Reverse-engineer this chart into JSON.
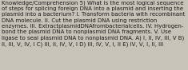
{
  "text": "Knowledge/Comprehension 5) What is the most logical sequence\nof steps for splicing foreign DNA into a plasmid and inserting the\nplasmid into a bacterium? I. Transform bacteria with recombinant\nDNA molecule. II. Cut the plasmid DNA using restriction\nenzymes. III. ExtractplasmidDNAfrombacterialcells. IV. Hydrogen-\nbond the plasmid DNA to nonplasmid DNA fragments. V. Use\nligase to seal plasmid DNA to nonplasmid DNA. A) I, II, IV, III, V B)\nII, III, V, IV, I C) III, II, IV, V, I D) III, IV, V, I, II E) IV, V, I, II, III",
  "font_size": 5.0,
  "bg_color": "#c8c3b8",
  "text_color": "#1a1a1a",
  "fig_width": 2.35,
  "fig_height": 0.88,
  "dpi": 100
}
